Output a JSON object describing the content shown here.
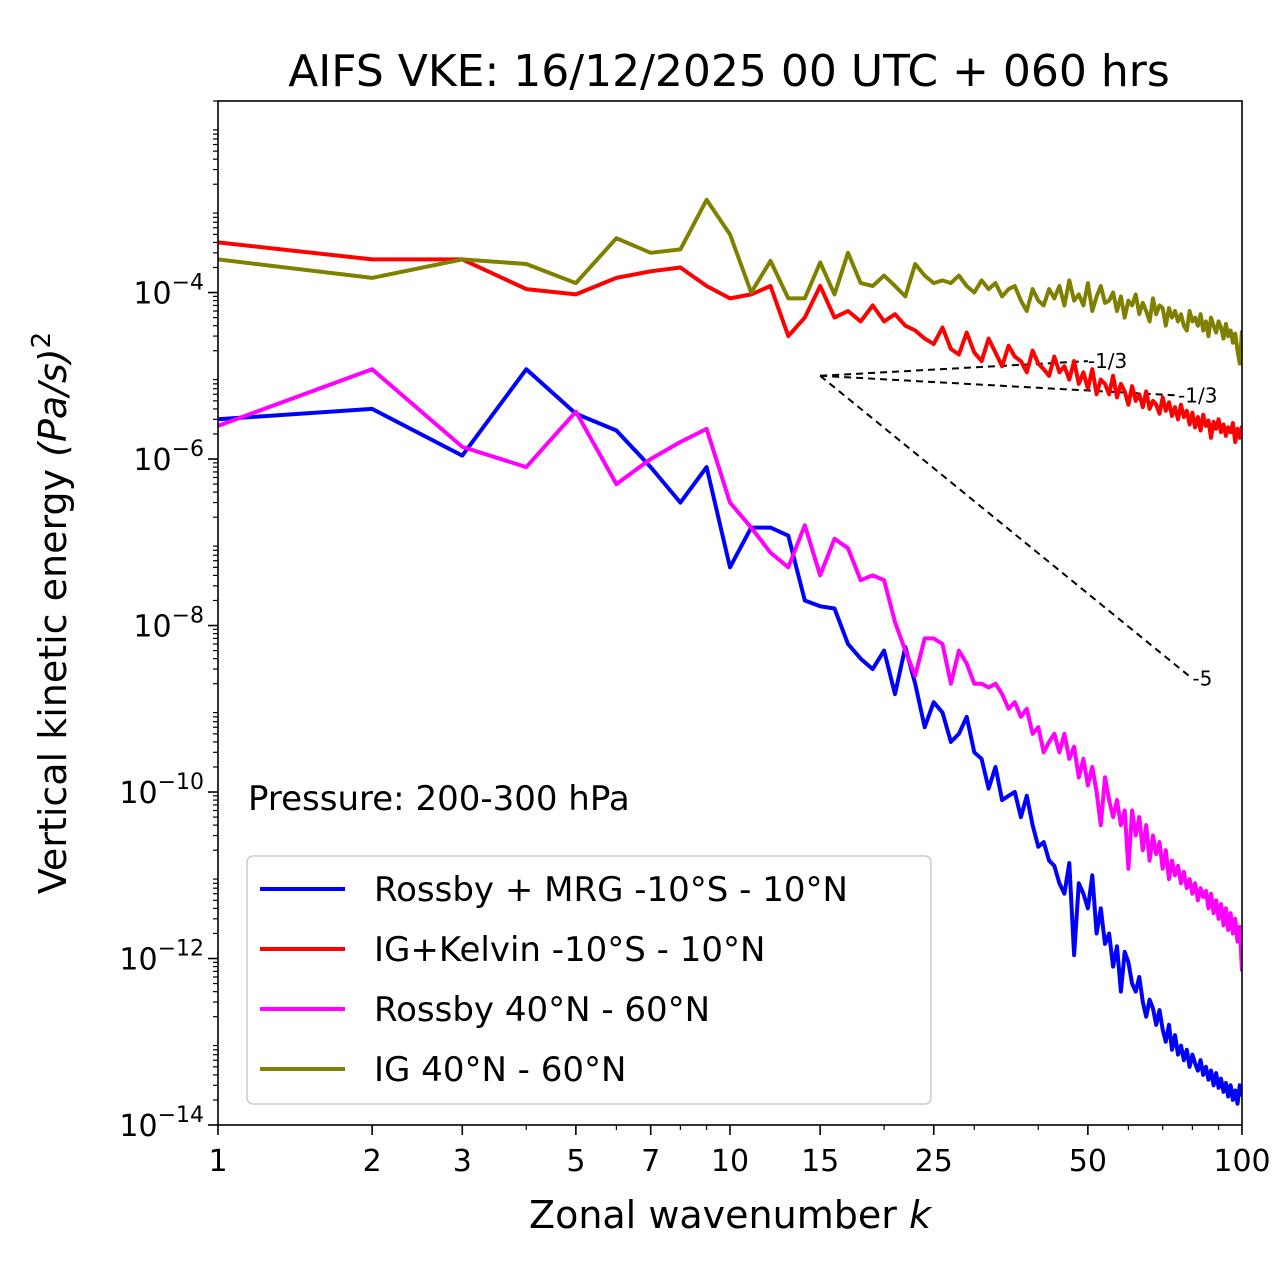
{
  "chart_data": {
    "type": "line",
    "title": "AIFS VKE: 16/12/2025 00 UTC + 060 hrs",
    "xlabel": "Zonal wavenumber k",
    "xlabel_main": "Zonal wavenumber ",
    "xlabel_var": "k",
    "ylabel": "Vertical kinetic energy (Pa/s)^2",
    "ylabel_main": "Vertical kinetic energy ",
    "ylabel_var": "(Pa/s)",
    "ylabel_exp": "2",
    "xscale": "log",
    "yscale": "log",
    "xlim": [
      1,
      100
    ],
    "ylim": [
      1e-14,
      0.02
    ],
    "x_ticks": [
      1,
      2,
      3,
      5,
      7,
      10,
      15,
      25,
      50,
      100
    ],
    "x_tick_labels": [
      "1",
      "2",
      "3",
      "5",
      "7",
      "10",
      "15",
      "25",
      "50",
      "100"
    ],
    "y_ticks": [
      {
        "value": 0.0001,
        "base": "10",
        "exp": "−4"
      },
      {
        "value": 1e-06,
        "base": "10",
        "exp": "−6"
      },
      {
        "value": 1e-08,
        "base": "10",
        "exp": "−8"
      },
      {
        "value": 1e-10,
        "base": "10",
        "exp": "−10"
      },
      {
        "value": 1e-12,
        "base": "10",
        "exp": "−12"
      },
      {
        "value": 1e-14,
        "base": "10",
        "exp": "−14"
      }
    ],
    "annotation": "Pressure: 200-300 hPa",
    "legend_position": "lower-left",
    "reference_lines": [
      {
        "label": "-1/3",
        "x": [
          15,
          50
        ],
        "y": [
          1e-05,
          1.5e-05
        ]
      },
      {
        "label": "-1/3",
        "x": [
          15,
          75
        ],
        "y": [
          1e-05,
          5.8e-06
        ]
      },
      {
        "label": "-5",
        "x": [
          15,
          80
        ],
        "y": [
          1e-05,
          2.3e-09
        ]
      }
    ],
    "series": [
      {
        "name": "Rossby + MRG -10°S - 10°N",
        "color": "#0000ff",
        "x": [
          1,
          2,
          3,
          4,
          5,
          6,
          7,
          8,
          9,
          10,
          11,
          12,
          13,
          14,
          15,
          16,
          17,
          18,
          19,
          20,
          21,
          22,
          23,
          24,
          25,
          26,
          27,
          28,
          29,
          30,
          31,
          32,
          33,
          34,
          35,
          36,
          37,
          38,
          39,
          40,
          41,
          42,
          43,
          44,
          45,
          46,
          47,
          48,
          49,
          50,
          51,
          52,
          53,
          54,
          55,
          56,
          57,
          58,
          59,
          60,
          61,
          62,
          63,
          64,
          65,
          66,
          67,
          68,
          69,
          70,
          71,
          72,
          73,
          74,
          75,
          76,
          77,
          78,
          79,
          80,
          81,
          82,
          83,
          84,
          85,
          86,
          87,
          88,
          89,
          90,
          91,
          92,
          93,
          94,
          95,
          96,
          97,
          98,
          99,
          100
        ],
        "y": [
          3e-06,
          4e-06,
          1.1e-06,
          1.2e-05,
          3.5e-06,
          2.2e-06,
          8e-07,
          3e-07,
          8e-07,
          5e-08,
          1.5e-07,
          1.5e-07,
          1.2e-07,
          2e-08,
          1.7e-08,
          1.6e-08,
          6e-09,
          4e-09,
          3e-09,
          5e-09,
          1.5e-09,
          5.5e-09,
          2e-09,
          6e-10,
          1.2e-09,
          9e-10,
          4e-10,
          5e-10,
          8e-10,
          3e-10,
          2.5e-10,
          1.1e-10,
          2e-10,
          8e-11,
          9e-11,
          1e-10,
          5e-11,
          9e-11,
          4e-11,
          2.2e-11,
          2.5e-11,
          1.5e-11,
          1.3e-11,
          8e-12,
          6e-12,
          1.4e-11,
          1.1e-12,
          8e-12,
          6e-12,
          4e-12,
          1e-11,
          2e-12,
          4e-12,
          1.5e-12,
          2e-12,
          8e-13,
          1.4e-12,
          4e-13,
          1.2e-12,
          9e-13,
          5e-13,
          4e-13,
          6e-13,
          3e-13,
          2e-13,
          3.2e-13,
          2.5e-13,
          1.6e-13,
          2.4e-13,
          1.4e-13,
          1e-13,
          1.6e-13,
          8e-14,
          1.2e-13,
          7e-14,
          9e-14,
          6e-14,
          8e-14,
          5e-14,
          7e-14,
          5.5e-14,
          4.5e-14,
          6e-14,
          4e-14,
          5e-14,
          3.5e-14,
          4.5e-14,
          3e-14,
          4.2e-14,
          2.8e-14,
          3.6e-14,
          2.5e-14,
          3.2e-14,
          2.2e-14,
          3e-14,
          2e-14,
          2.6e-14,
          1.8e-14,
          3e-14,
          2.2e-14
        ]
      },
      {
        "name": "IG+Kelvin -10°S - 10°N",
        "color": "#ff0000",
        "x": [
          1,
          2,
          3,
          4,
          5,
          6,
          7,
          8,
          9,
          10,
          11,
          12,
          13,
          14,
          15,
          16,
          17,
          18,
          19,
          20,
          21,
          22,
          23,
          24,
          25,
          26,
          27,
          28,
          29,
          30,
          31,
          32,
          33,
          34,
          35,
          36,
          37,
          38,
          39,
          40,
          41,
          42,
          43,
          44,
          45,
          46,
          47,
          48,
          49,
          50,
          51,
          52,
          53,
          54,
          55,
          56,
          57,
          58,
          59,
          60,
          61,
          62,
          63,
          64,
          65,
          66,
          67,
          68,
          69,
          70,
          71,
          72,
          73,
          74,
          75,
          76,
          77,
          78,
          79,
          80,
          81,
          82,
          83,
          84,
          85,
          86,
          87,
          88,
          89,
          90,
          91,
          92,
          93,
          94,
          95,
          96,
          97,
          98,
          99,
          100
        ],
        "y": [
          0.0004,
          0.00025,
          0.00025,
          0.00011,
          9.5e-05,
          0.00015,
          0.00018,
          0.0002,
          0.00012,
          8.5e-05,
          9.5e-05,
          0.00012,
          3e-05,
          5e-05,
          0.00012,
          5e-05,
          6e-05,
          4.5e-05,
          7e-05,
          4.5e-05,
          5.5e-05,
          4e-05,
          3.5e-05,
          2.8e-05,
          2.4e-05,
          3.8e-05,
          2.1e-05,
          1.8e-05,
          3.3e-05,
          1.9e-05,
          1.5e-05,
          2.8e-05,
          1.9e-05,
          1.3e-05,
          2.3e-05,
          1.7e-05,
          1.5e-05,
          1.1e-05,
          2e-05,
          1.4e-05,
          1.2e-05,
          1e-05,
          1.7e-05,
          1.1e-05,
          1.3e-05,
          9e-06,
          1.5e-05,
          8e-06,
          1.1e-05,
          7e-06,
          1.2e-05,
          6e-06,
          9e-06,
          8e-06,
          6e-06,
          1e-05,
          5.5e-06,
          8e-06,
          6.5e-06,
          4.5e-06,
          7.5e-06,
          5e-06,
          6e-06,
          4.2e-06,
          6.5e-06,
          4e-06,
          5e-06,
          4.5e-06,
          3.5e-06,
          5.5e-06,
          3.8e-06,
          4.8e-06,
          3.3e-06,
          4.2e-06,
          3e-06,
          4.5e-06,
          3.2e-06,
          3.8e-06,
          2.6e-06,
          3.6e-06,
          2.4e-06,
          3.2e-06,
          2.2e-06,
          3.4e-06,
          2.5e-06,
          2.9e-06,
          1.8e-06,
          2.8e-06,
          2.3e-06,
          3e-06,
          2.1e-06,
          2.6e-06,
          1.9e-06,
          2.4e-06,
          2.1e-06,
          2.7e-06,
          1.6e-06,
          2.3e-06,
          1.8e-06,
          2.5e-06
        ]
      },
      {
        "name": "Rossby 40°N - 60°N",
        "color": "#ff00ff",
        "x": [
          1,
          2,
          3,
          4,
          5,
          6,
          7,
          8,
          9,
          10,
          11,
          12,
          13,
          14,
          15,
          16,
          17,
          18,
          19,
          20,
          21,
          22,
          23,
          24,
          25,
          26,
          27,
          28,
          29,
          30,
          31,
          32,
          33,
          34,
          35,
          36,
          37,
          38,
          39,
          40,
          41,
          42,
          43,
          44,
          45,
          46,
          47,
          48,
          49,
          50,
          51,
          52,
          53,
          54,
          55,
          56,
          57,
          58,
          59,
          60,
          61,
          62,
          63,
          64,
          65,
          66,
          67,
          68,
          69,
          70,
          71,
          72,
          73,
          74,
          75,
          76,
          77,
          78,
          79,
          80,
          81,
          82,
          83,
          84,
          85,
          86,
          87,
          88,
          89,
          90,
          91,
          92,
          93,
          94,
          95,
          96,
          97,
          98,
          99,
          100
        ],
        "y": [
          2.5e-06,
          1.2e-05,
          1.4e-06,
          8e-07,
          3.7e-06,
          5e-07,
          1e-06,
          1.6e-06,
          2.3e-06,
          3e-07,
          1.5e-07,
          7.5e-08,
          5e-08,
          1.6e-07,
          4e-08,
          1.1e-07,
          8.5e-08,
          3.5e-08,
          4e-08,
          3.5e-08,
          1.1e-08,
          5e-09,
          2.5e-09,
          7e-09,
          7e-09,
          6e-09,
          2e-09,
          5e-09,
          3.5e-09,
          2e-09,
          2e-09,
          1.8e-09,
          2e-09,
          1.5e-09,
          1e-09,
          1.2e-09,
          8e-10,
          1e-09,
          5e-10,
          6e-10,
          3e-10,
          4e-10,
          5e-10,
          3e-10,
          5e-10,
          2.5e-10,
          3.5e-10,
          1.5e-10,
          2.5e-10,
          1.2e-10,
          2e-10,
          1e-10,
          4e-11,
          1.5e-10,
          8e-11,
          5e-11,
          8e-11,
          4e-11,
          6e-11,
          1.2e-11,
          6e-11,
          3e-11,
          5e-11,
          2e-11,
          4e-11,
          1.5e-11,
          3e-11,
          1.8e-11,
          2.5e-11,
          1.2e-11,
          2e-11,
          9e-12,
          1.5e-11,
          1e-11,
          1.3e-11,
          8e-12,
          1.1e-11,
          7e-12,
          9e-12,
          6e-12,
          8e-12,
          5e-12,
          7e-12,
          5.5e-12,
          6.5e-12,
          4e-12,
          6e-12,
          3.5e-12,
          5e-12,
          3e-12,
          4.5e-12,
          2.5e-12,
          4e-12,
          2.2e-12,
          3.5e-12,
          2e-12,
          3e-12,
          1.6e-12,
          2.4e-12,
          7e-13
        ]
      },
      {
        "name": "IG 40°N - 60°N",
        "color": "#808000",
        "x": [
          1,
          2,
          3,
          4,
          5,
          6,
          7,
          8,
          9,
          10,
          11,
          12,
          13,
          14,
          15,
          16,
          17,
          18,
          19,
          20,
          21,
          22,
          23,
          24,
          25,
          26,
          27,
          28,
          29,
          30,
          31,
          32,
          33,
          34,
          35,
          36,
          37,
          38,
          39,
          40,
          41,
          42,
          43,
          44,
          45,
          46,
          47,
          48,
          49,
          50,
          51,
          52,
          53,
          54,
          55,
          56,
          57,
          58,
          59,
          60,
          61,
          62,
          63,
          64,
          65,
          66,
          67,
          68,
          69,
          70,
          71,
          72,
          73,
          74,
          75,
          76,
          77,
          78,
          79,
          80,
          81,
          82,
          83,
          84,
          85,
          86,
          87,
          88,
          89,
          90,
          91,
          92,
          93,
          94,
          95,
          96,
          97,
          98,
          99,
          100
        ],
        "y": [
          0.00025,
          0.00015,
          0.00025,
          0.00022,
          0.00013,
          0.00045,
          0.0003,
          0.00033,
          0.0013,
          0.0005,
          0.0001,
          0.00024,
          8.5e-05,
          8.5e-05,
          0.00023,
          9.5e-05,
          0.0003,
          0.00013,
          0.00012,
          0.00016,
          0.00012,
          9e-05,
          0.00022,
          0.00016,
          0.00013,
          0.00014,
          0.00013,
          0.00016,
          0.00012,
          0.0001,
          0.00014,
          0.00011,
          0.00013,
          9e-05,
          0.00011,
          0.00012,
          8e-05,
          6e-05,
          0.00011,
          8e-05,
          7e-05,
          0.00011,
          8.5e-05,
          0.00012,
          7e-05,
          0.00014,
          8e-05,
          9.5e-05,
          7e-05,
          0.00013,
          6e-05,
          9e-05,
          0.00012,
          7.5e-05,
          8e-05,
          0.0001,
          6e-05,
          9e-05,
          5e-05,
          8e-05,
          7e-05,
          9.5e-05,
          5.5e-05,
          7.5e-05,
          6e-05,
          4.5e-05,
          8.5e-05,
          5.5e-05,
          7e-05,
          6.5e-05,
          4e-05,
          6.5e-05,
          5e-05,
          6e-05,
          4.5e-05,
          5.5e-05,
          4e-05,
          3.5e-05,
          6e-05,
          4.5e-05,
          5e-05,
          4e-05,
          5.5e-05,
          3.5e-05,
          4.5e-05,
          3e-05,
          5e-05,
          4e-05,
          3.3e-05,
          4.5e-05,
          3.8e-05,
          2.8e-05,
          4.2e-05,
          3e-05,
          3.5e-05,
          2.5e-05,
          3.2e-05,
          2e-05,
          1.4e-05,
          3.5e-05
        ]
      }
    ]
  }
}
